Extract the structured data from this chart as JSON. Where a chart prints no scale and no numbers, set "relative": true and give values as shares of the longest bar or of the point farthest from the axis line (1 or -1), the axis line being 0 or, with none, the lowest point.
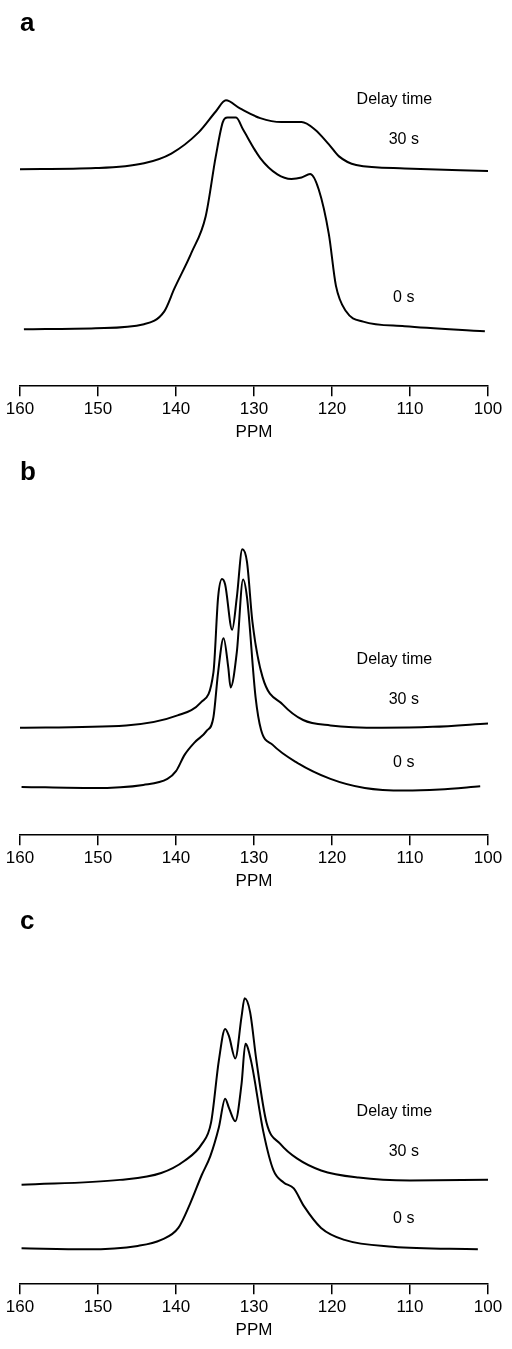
{
  "chart_data": [
    {
      "type": "line",
      "title": "a",
      "xlabel": "PPM",
      "xlim": [
        160,
        100
      ],
      "xticks": [
        160,
        150,
        140,
        130,
        120,
        110,
        100
      ],
      "relative": true,
      "grid": false,
      "legend": false,
      "marker": "none",
      "line_style": "solid",
      "annotations": [
        "Delay time"
      ],
      "series": [
        {
          "name": "30 s",
          "color": "#000000",
          "x": [
            160,
            150.3,
            144.1,
            140.6,
            137.1,
            134.9,
            133.6,
            131.8,
            129.2,
            126.5,
            123.9,
            122.2,
            120.4,
            119.1,
            116.9,
            110.7,
            100
          ],
          "values": [
            0.759,
            0.763,
            0.78,
            0.814,
            0.888,
            0.961,
            1.0,
            0.972,
            0.938,
            0.924,
            0.924,
            0.898,
            0.846,
            0.804,
            0.774,
            0.762,
            0.753
          ]
        },
        {
          "name": "0 s",
          "color": "#000000",
          "x": [
            159.5,
            150.3,
            144.1,
            141.5,
            140.2,
            138.0,
            136.2,
            134.9,
            134.0,
            133.4,
            132.3,
            131.4,
            129.2,
            127.0,
            125.2,
            123.9,
            122.8,
            121.7,
            120.4,
            119.5,
            118.2,
            116.0,
            110.7,
            100.4
          ],
          "values": [
            0.199,
            0.203,
            0.217,
            0.262,
            0.342,
            0.468,
            0.594,
            0.804,
            0.924,
            0.94,
            0.94,
            0.898,
            0.798,
            0.741,
            0.725,
            0.73,
            0.742,
            0.688,
            0.531,
            0.352,
            0.262,
            0.226,
            0.21,
            0.192
          ]
        }
      ]
    },
    {
      "type": "line",
      "title": "b",
      "xlabel": "PPM",
      "xlim": [
        160,
        100
      ],
      "xticks": [
        160,
        150,
        140,
        130,
        120,
        110,
        100
      ],
      "relative": true,
      "grid": false,
      "legend": false,
      "marker": "none",
      "line_style": "solid",
      "annotations": [
        "Delay time"
      ],
      "series": [
        {
          "name": "30 s",
          "color": "#000000",
          "x": [
            160,
            146.4,
            139.8,
            136.8,
            135.2,
            134.6,
            134.1,
            133.7,
            132.8,
            132.2,
            131.5,
            130.9,
            130.2,
            128.9,
            126.3,
            123.7,
            120.2,
            113.6,
            107.1,
            100
          ],
          "values": [
            0.376,
            0.384,
            0.419,
            0.465,
            0.57,
            0.833,
            0.896,
            0.877,
            0.719,
            0.833,
            1.0,
            0.956,
            0.746,
            0.553,
            0.457,
            0.403,
            0.384,
            0.376,
            0.379,
            0.391
          ]
        },
        {
          "name": "0 s",
          "color": "#000000",
          "x": [
            159.8,
            150.7,
            144.2,
            141.1,
            140.0,
            138.9,
            137.6,
            136.1,
            135.2,
            134.6,
            133.9,
            133.3,
            133.0,
            132.2,
            131.4,
            130.9,
            129.8,
            129.1,
            127.6,
            124.5,
            120.2,
            115.8,
            110.6,
            106.2,
            101.0
          ],
          "values": [
            0.169,
            0.165,
            0.176,
            0.197,
            0.224,
            0.281,
            0.325,
            0.364,
            0.413,
            0.57,
            0.689,
            0.587,
            0.517,
            0.641,
            0.895,
            0.833,
            0.483,
            0.369,
            0.316,
            0.254,
            0.197,
            0.165,
            0.156,
            0.16,
            0.171
          ]
        }
      ]
    },
    {
      "type": "line",
      "title": "c",
      "xlabel": "PPM",
      "xlim": [
        160,
        100
      ],
      "xticks": [
        160,
        150,
        140,
        130,
        120,
        110,
        100
      ],
      "relative": true,
      "grid": false,
      "legend": false,
      "marker": "none",
      "line_style": "solid",
      "annotations": [
        "Delay time"
      ],
      "series": [
        {
          "name": "30 s",
          "color": "#000000",
          "x": [
            159.8,
            147.2,
            141.9,
            138.9,
            136.7,
            135.5,
            134.5,
            133.7,
            133.2,
            132.4,
            131.6,
            131.2,
            130.5,
            129.7,
            128.4,
            126.6,
            124.5,
            121.4,
            116.6,
            110.0,
            100
          ],
          "values": [
            0.348,
            0.365,
            0.389,
            0.432,
            0.49,
            0.566,
            0.784,
            0.893,
            0.867,
            0.79,
            0.935,
            1.0,
            0.952,
            0.784,
            0.566,
            0.49,
            0.44,
            0.398,
            0.373,
            0.363,
            0.365
          ]
        },
        {
          "name": "0 s",
          "color": "#000000",
          "x": [
            159.8,
            151.5,
            144.9,
            141.9,
            139.7,
            138.2,
            136.7,
            135.6,
            134.5,
            133.7,
            133.2,
            132.4,
            131.6,
            131.1,
            130.4,
            128.8,
            127.5,
            126.2,
            124.9,
            123.6,
            121.4,
            118.4,
            112.2,
            101.3
          ],
          "values": [
            0.126,
            0.122,
            0.134,
            0.155,
            0.197,
            0.281,
            0.382,
            0.448,
            0.549,
            0.649,
            0.616,
            0.57,
            0.7,
            0.841,
            0.784,
            0.533,
            0.398,
            0.356,
            0.335,
            0.273,
            0.197,
            0.155,
            0.131,
            0.122
          ]
        }
      ]
    }
  ]
}
